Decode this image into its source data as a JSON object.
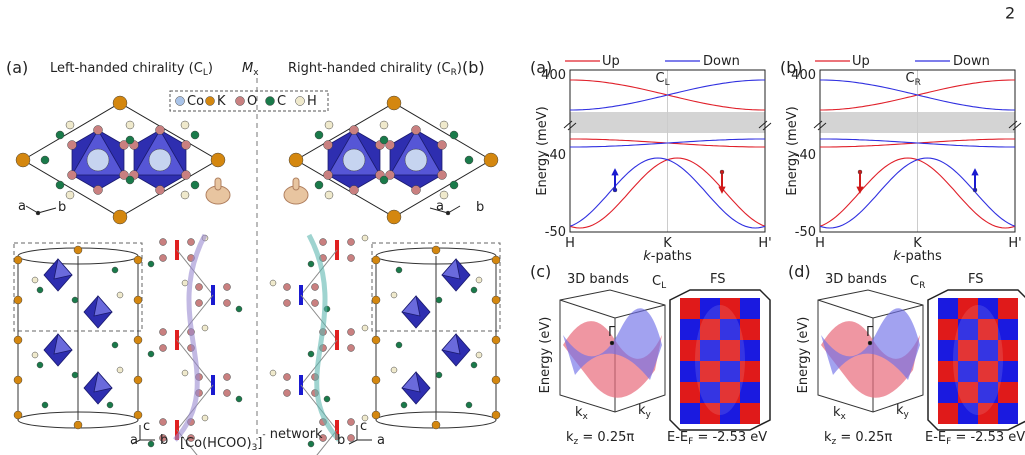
{
  "page_number": "2",
  "left": {
    "label_a": "(a)",
    "label_b": "(b)",
    "left_title": [
      "Left-handed chirality (C",
      "L",
      ")"
    ],
    "right_title": [
      "Right-handed chirality (C",
      "R",
      ")"
    ],
    "mirror": [
      "M",
      "x"
    ],
    "legend": [
      "Co",
      "K",
      "O",
      "C",
      "H"
    ],
    "axes_top_left": [
      "a",
      "b"
    ],
    "axes_top_right": [
      "a",
      "b"
    ],
    "axes_bottom_left": [
      "a",
      "b",
      "c"
    ],
    "axes_bottom_right": [
      "b",
      "a",
      "c"
    ],
    "network": [
      "[Co(HCOO)",
      "3",
      "]",
      "-",
      " network"
    ]
  },
  "band_panels": [
    {
      "label": "(a)",
      "legend": [
        "Up",
        "Down"
      ],
      "chirality": [
        "C",
        "L"
      ],
      "ylabel": "Energy (meV)",
      "yticks": [
        "400",
        "-40",
        "-50"
      ],
      "xticks": [
        "H",
        "K",
        "H'"
      ],
      "xlabel": [
        "k",
        "-paths"
      ]
    },
    {
      "label": "(b)",
      "legend": [
        "Up",
        "Down"
      ],
      "chirality": [
        "C",
        "R"
      ],
      "ylabel": "Energy (meV)",
      "yticks": [
        "400",
        "-40",
        "-50"
      ],
      "xticks": [
        "H",
        "K",
        "H'"
      ],
      "xlabel": [
        "k",
        "-paths"
      ]
    }
  ],
  "bands3d_panels": [
    {
      "label": "(c)",
      "title": "3D bands",
      "chirality": [
        "C",
        "L"
      ],
      "fs": "FS",
      "zlabel": "Energy (eV)",
      "gamma": "Γ",
      "kx": [
        "k",
        "x"
      ],
      "ky": [
        "k",
        "y"
      ],
      "kz": [
        "k",
        "z",
        " = 0.25π"
      ],
      "energy": [
        "E-E",
        "F",
        " = -2.53 eV"
      ]
    },
    {
      "label": "(d)",
      "title": "3D bands",
      "chirality": [
        "C",
        "R"
      ],
      "fs": "FS",
      "zlabel": "Energy (eV)",
      "gamma": "Γ",
      "kx": [
        "k",
        "x"
      ],
      "ky": [
        "k",
        "y"
      ],
      "kz": [
        "k",
        "z",
        " = 0.25π"
      ],
      "energy": [
        "E-E",
        "F",
        " = -2.53 eV"
      ]
    }
  ]
}
